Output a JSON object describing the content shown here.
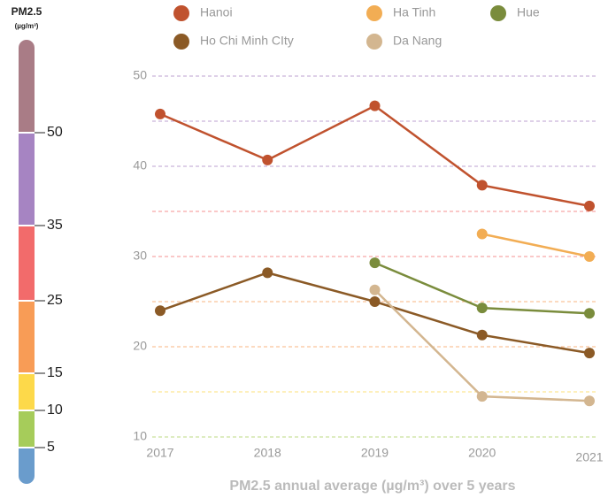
{
  "chart_data": {
    "type": "line",
    "x_label": "PM2.5 annual average (µg/m³) over 5 years",
    "categories": [
      "2017",
      "2018",
      "2019",
      "2020",
      "2021"
    ],
    "ylim": [
      10,
      50
    ],
    "yticks": [
      10,
      20,
      30,
      40,
      50
    ],
    "minor_yticks": [
      15,
      25,
      35,
      45
    ],
    "grid": true,
    "series": [
      {
        "name": "Hanoi",
        "color": "#c0522e",
        "values": [
          45.8,
          40.7,
          46.7,
          37.9,
          35.6
        ]
      },
      {
        "name": "Ha Tinh",
        "color": "#f2ad54",
        "values": [
          null,
          null,
          null,
          32.5,
          30.0
        ]
      },
      {
        "name": "Hue",
        "color": "#7a8c3c",
        "values": [
          null,
          null,
          29.3,
          24.3,
          23.7
        ]
      },
      {
        "name": "Ho Chi Minh CIty",
        "color": "#8b5a26",
        "values": [
          24.0,
          28.2,
          25.0,
          21.3,
          19.3
        ]
      },
      {
        "name": "Da Nang",
        "color": "#d3b690",
        "values": [
          null,
          null,
          26.3,
          14.5,
          14.0
        ]
      }
    ],
    "scale": {
      "title": "PM2.5",
      "unit": "(µg/m³)",
      "ticks": [
        50,
        35,
        25,
        15,
        10,
        5
      ],
      "colors": [
        "#a97c86",
        "#a684c2",
        "#f26b6b",
        "#f89c56",
        "#fdd94a",
        "#a6cc5a",
        "#6a9ccc"
      ]
    }
  }
}
